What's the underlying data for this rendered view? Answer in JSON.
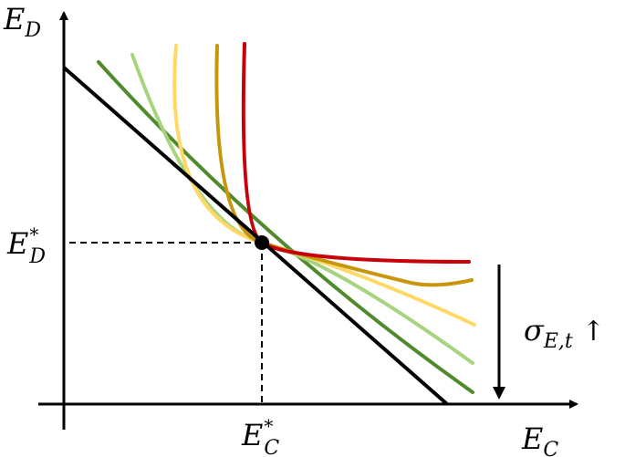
{
  "axes": {
    "y_label_main": "E",
    "y_label_sub": "D",
    "x_label_main": "E",
    "x_label_sub": "C"
  },
  "equilibrium": {
    "y_main": "E",
    "y_sup": "*",
    "y_sub": "D",
    "x_main": "E",
    "x_sup": "*",
    "x_sub": "C"
  },
  "annotation": {
    "main": "σ",
    "sub": "E,t",
    "arrow": "↑"
  },
  "colors": {
    "budget_line": "#000000",
    "curve_red": "#c8000a",
    "curve_gold": "#c8960a",
    "curve_yellow": "#ffd966",
    "curve_lightgreen": "#a6d47f",
    "curve_darkgreen": "#4f8a2c"
  }
}
